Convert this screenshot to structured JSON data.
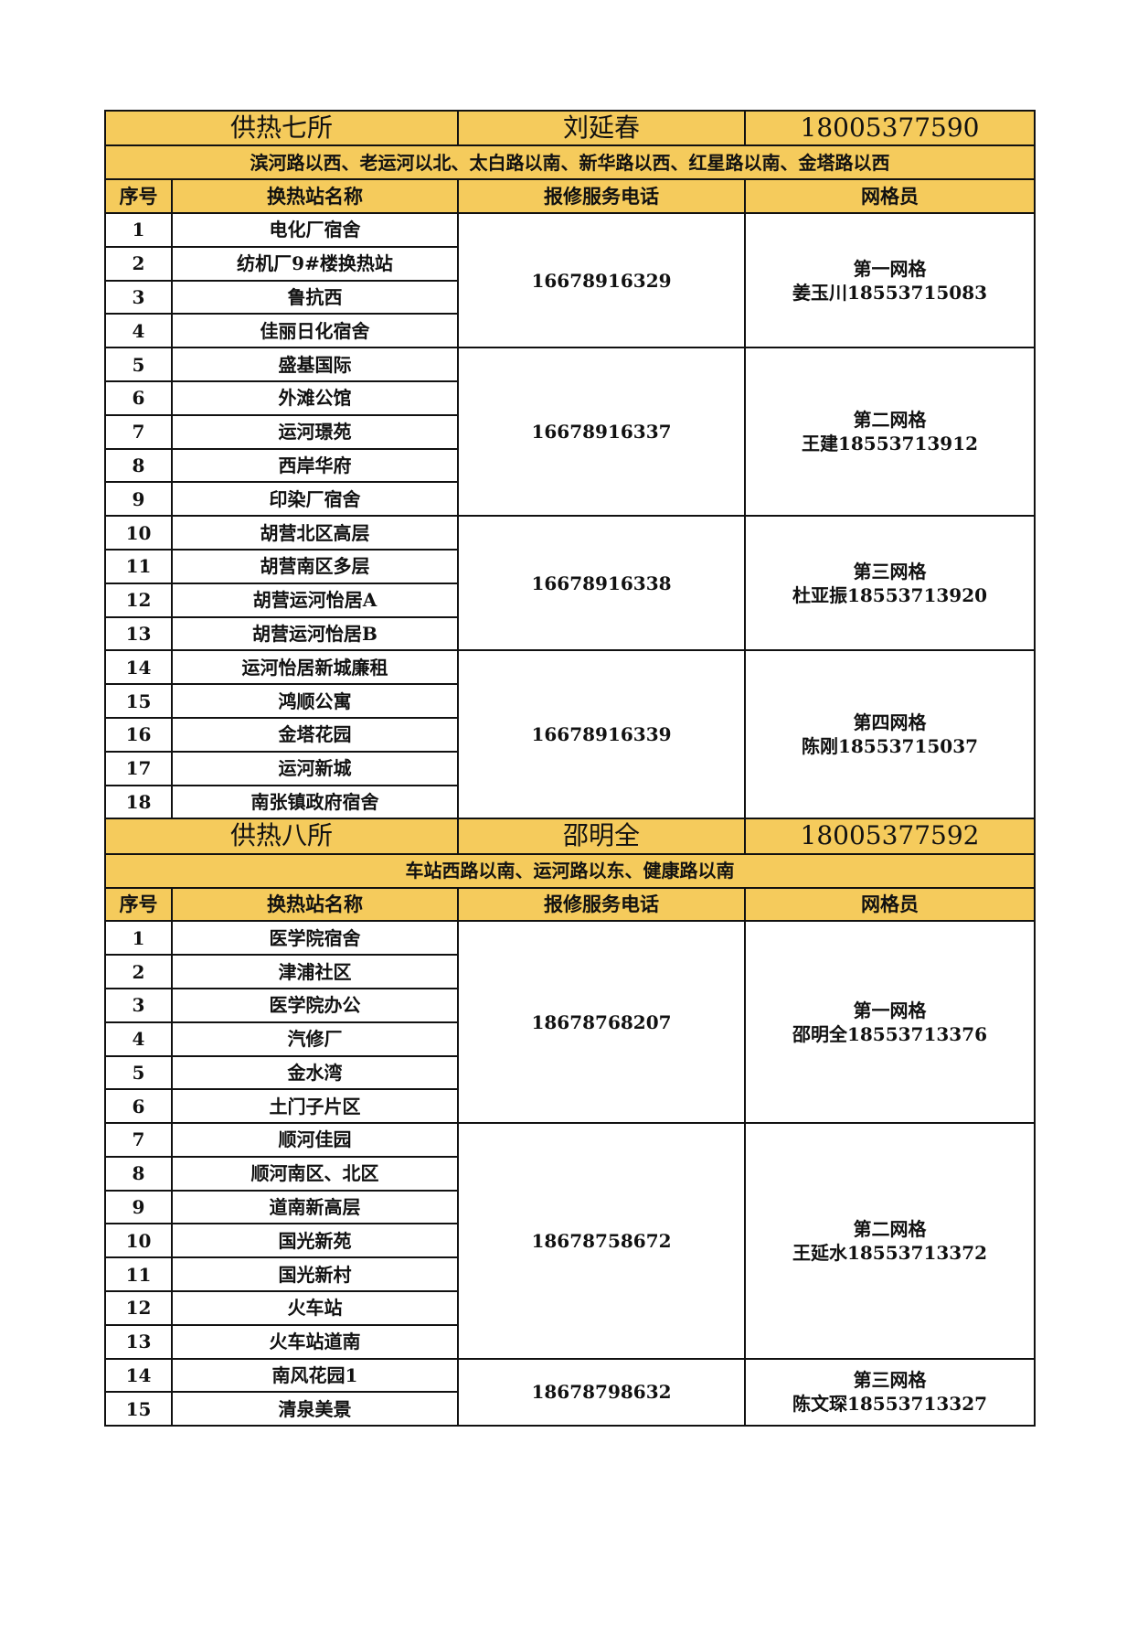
{
  "colors": {
    "header_bg": "#f5cb5c",
    "border": "#111111"
  },
  "sections": [
    {
      "name": "供热七所",
      "manager": "刘延春",
      "phone": "18005377590",
      "zone": "滨河路以西、老运河以北、太白路以南、新华路以西、红星路以南、金塔路以西",
      "columns": [
        "序号",
        "换热站名称",
        "报修服务电话",
        "网格员"
      ],
      "groups": [
        {
          "phone": "16678916329",
          "grid": "第一网格",
          "staff": "姜玉川18553715083",
          "stations": [
            "电化厂宿舍",
            "纺机厂9#楼换热站",
            "鲁抗西",
            "佳丽日化宿舍"
          ]
        },
        {
          "phone": "16678916337",
          "grid": "第二网格",
          "staff": "王建18553713912",
          "stations": [
            "盛基国际",
            "外滩公馆",
            "运河璟苑",
            "西岸华府",
            "印染厂宿舍"
          ]
        },
        {
          "phone": "16678916338",
          "grid": "第三网格",
          "staff": "杜亚振18553713920",
          "stations": [
            "胡营北区高层",
            "胡营南区多层",
            "胡营运河怡居A",
            "胡营运河怡居B"
          ]
        },
        {
          "phone": "16678916339",
          "grid": "第四网格",
          "staff": "陈刚18553715037",
          "stations": [
            "运河怡居新城廉租",
            "鸿顺公寓",
            "金塔花园",
            "运河新城",
            "南张镇政府宿舍"
          ]
        }
      ]
    },
    {
      "name": "供热八所",
      "manager": "邵明全",
      "phone": "18005377592",
      "zone": "车站西路以南、运河路以东、健康路以南",
      "columns": [
        "序号",
        "换热站名称",
        "报修服务电话",
        "网格员"
      ],
      "groups": [
        {
          "phone": "18678768207",
          "grid": "第一网格",
          "staff": "邵明全18553713376",
          "stations": [
            "医学院宿舍",
            "津浦社区",
            "医学院办公",
            "汽修厂",
            "金水湾",
            "土门子片区"
          ]
        },
        {
          "phone": "18678758672",
          "grid": "第二网格",
          "staff": "王延水18553713372",
          "stations": [
            "顺河佳园",
            "顺河南区、北区",
            "道南新高层",
            "国光新苑",
            "国光新村",
            "火车站",
            "火车站道南"
          ]
        },
        {
          "phone": "18678798632",
          "grid": "第三网格",
          "staff": "陈文琛18553713327",
          "stations": [
            "南风花园1",
            "清泉美景"
          ]
        }
      ]
    }
  ]
}
